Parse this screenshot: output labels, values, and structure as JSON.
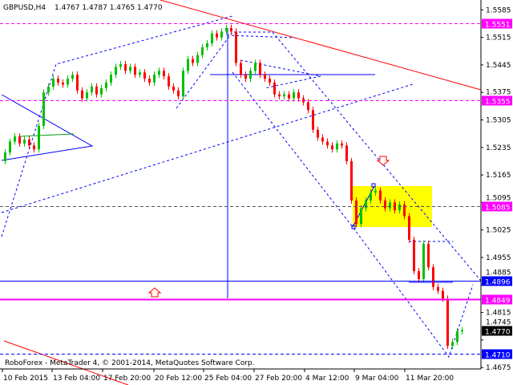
{
  "header": {
    "symbol": "GBPUSD,H4",
    "ohlc_text": "1.4767 1.4787 1.4765 1.4770"
  },
  "footer": {
    "copyright": "RoboForex - MetaTrader 4, © 2001-2014, MetaQuotes Software Corp."
  },
  "colors": {
    "bull": "#00c000",
    "bear": "#ff0000",
    "level_magenta": "#ff00ff",
    "level_blue": "#0000ff",
    "price_label_bg": "#000000",
    "zone": "#ffff00"
  },
  "chart_data": {
    "type": "candlestick",
    "title": "GBPUSD,H4",
    "ylim": [
      1.4675,
      1.56
    ],
    "y_ticks": [
      "1.5585",
      "1.5515",
      "1.5445",
      "1.5375",
      "1.5305",
      "1.5235",
      "1.5165",
      "1.5095",
      "1.5025",
      "1.4955",
      "1.4885",
      "1.4815",
      "1.4745",
      "1.4675"
    ],
    "x_ticks": [
      "10 Feb 2015",
      "13 Feb 04:00",
      "17 Feb 20:00",
      "20 Feb 12:00",
      "25 Feb 04:00",
      "27 Feb 20:00",
      "4 Mar 12:00",
      "9 Mar 04:00",
      "11 Mar 20:00"
    ],
    "first_open": 1.52,
    "closes": [
      1.5222,
      1.525,
      1.5263,
      1.5245,
      1.5255,
      1.524,
      1.523,
      1.529,
      1.5375,
      1.539,
      1.541,
      1.54,
      1.5395,
      1.541,
      1.542,
      1.538,
      1.536,
      1.5375,
      1.539,
      1.537,
      1.5386,
      1.54,
      1.542,
      1.544,
      1.5447,
      1.543,
      1.544,
      1.542,
      1.5426,
      1.541,
      1.54,
      1.542,
      1.543,
      1.5416,
      1.539,
      1.538,
      1.5365,
      1.543,
      1.546,
      1.545,
      1.547,
      1.549,
      1.55,
      1.5525,
      1.5515,
      1.553,
      1.5539,
      1.553,
      1.545,
      1.542,
      1.541,
      1.543,
      1.545,
      1.542,
      1.541,
      1.54,
      1.537,
      1.5365,
      1.537,
      1.536,
      1.5375,
      1.536,
      1.535,
      1.533,
      1.528,
      1.526,
      1.525,
      1.524,
      1.523,
      1.5245,
      1.524,
      1.52,
      1.51,
      1.504,
      1.508,
      1.51,
      1.512,
      1.5125,
      1.51,
      1.508,
      1.5095,
      1.5075,
      1.509,
      1.506,
      1.5,
      1.492,
      1.49,
      1.499,
      1.493,
      1.488,
      1.487,
      1.485,
      1.473,
      1.474,
      1.4767,
      1.477
    ],
    "levels": [
      {
        "price": 1.5551,
        "label": "1.5551",
        "style": "dashed",
        "color": "#ff00ff"
      },
      {
        "price": 1.5355,
        "label": "1.5355",
        "style": "dashed",
        "color": "#ff00ff"
      },
      {
        "price": 1.5085,
        "label": "1.5085",
        "style": "dashed",
        "color": "#555555",
        "label_bg": "#ff00ff"
      },
      {
        "price": 1.4896,
        "label": "1.4896",
        "style": "solid",
        "color": "#0000ff"
      },
      {
        "price": 1.4849,
        "label": "1.4849",
        "style": "solid",
        "color": "#ff00ff"
      },
      {
        "price": 1.471,
        "label": "1.4710",
        "style": "dashed",
        "color": "#0000ff"
      }
    ],
    "current_price": {
      "price": 1.477,
      "label": "1.4770"
    }
  }
}
